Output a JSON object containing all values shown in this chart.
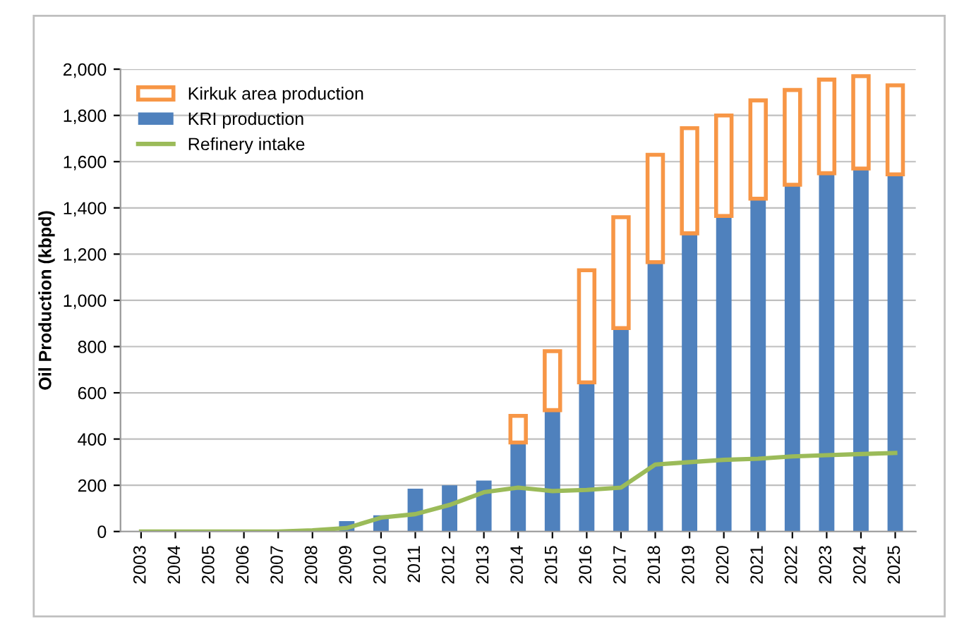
{
  "chart_data": {
    "type": "bar",
    "stacked": true,
    "ylabel": "Oil Production (kbpd)",
    "categories": [
      "2003",
      "2004",
      "2005",
      "2006",
      "2007",
      "2008",
      "2009",
      "2010",
      "2011",
      "2012",
      "2013",
      "2014",
      "2015",
      "2016",
      "2017",
      "2018",
      "2019",
      "2020",
      "2021",
      "2022",
      "2023",
      "2024",
      "2025"
    ],
    "series": [
      {
        "name": "KRI production",
        "color": "#4f81bd",
        "values": [
          0,
          0,
          0,
          0,
          0,
          0,
          45,
          70,
          185,
          200,
          220,
          385,
          525,
          645,
          880,
          1165,
          1290,
          1365,
          1440,
          1500,
          1550,
          1570,
          1545
        ]
      },
      {
        "name": "Kirkuk area production",
        "color": "#f79646",
        "values": [
          null,
          null,
          null,
          null,
          null,
          null,
          null,
          null,
          null,
          null,
          null,
          115,
          255,
          485,
          480,
          465,
          455,
          435,
          425,
          410,
          405,
          400,
          385
        ]
      },
      {
        "name": "Refinery intake",
        "type": "line",
        "color": "#9bbb59",
        "values": [
          0,
          0,
          0,
          0,
          0,
          5,
          15,
          60,
          75,
          115,
          170,
          190,
          175,
          180,
          190,
          290,
          300,
          310,
          315,
          325,
          330,
          335,
          340
        ]
      }
    ],
    "ylim": [
      0,
      2000
    ],
    "yticks": [
      {
        "value": 0,
        "label": "0"
      },
      {
        "value": 200,
        "label": "200"
      },
      {
        "value": 400,
        "label": "400"
      },
      {
        "value": 600,
        "label": "600"
      },
      {
        "value": 800,
        "label": "800"
      },
      {
        "value": 1000,
        "label": "1,000"
      },
      {
        "value": 1200,
        "label": "1,200"
      },
      {
        "value": 1400,
        "label": "1,400"
      },
      {
        "value": 1600,
        "label": "1,600"
      },
      {
        "value": 1800,
        "label": "1,800"
      },
      {
        "value": 2000,
        "label": "2,000"
      }
    ],
    "grid": "y",
    "legend": "top left"
  }
}
